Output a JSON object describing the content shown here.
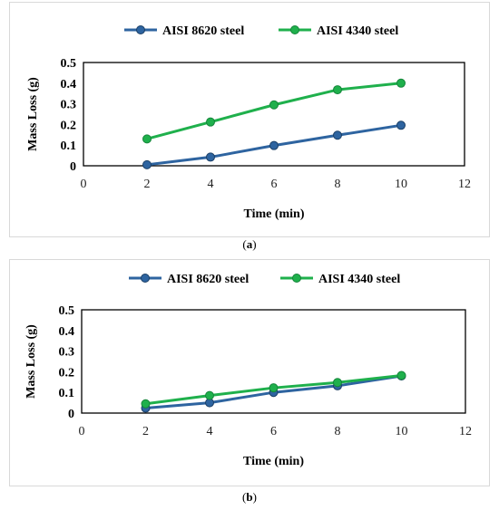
{
  "chart_data": [
    {
      "type": "line",
      "caption": "a",
      "xlabel": "Time (min)",
      "ylabel": "Mass Loss (g)",
      "xlim": [
        0,
        12
      ],
      "ylim": [
        0,
        0.5
      ],
      "x_ticks": [
        "0",
        "2",
        "4",
        "6",
        "8",
        "10",
        "12"
      ],
      "y_ticks": [
        "0",
        "0.1",
        "0.2",
        "0.3",
        "0.4",
        "0.5"
      ],
      "legend_position": "top",
      "grid": false,
      "series": [
        {
          "name": "AISI 8620 steel",
          "color": "#2e64a0",
          "x": [
            2,
            4,
            6,
            8,
            10
          ],
          "y": [
            0.005,
            0.042,
            0.098,
            0.148,
            0.196
          ]
        },
        {
          "name": "AISI 4340 steel",
          "color": "#1fb04c",
          "x": [
            2,
            4,
            6,
            8,
            10
          ],
          "y": [
            0.13,
            0.212,
            0.295,
            0.368,
            0.4
          ]
        }
      ]
    },
    {
      "type": "line",
      "caption": "b",
      "xlabel": "Time (min)",
      "ylabel": "Mass Loss (g)",
      "xlim": [
        0,
        12
      ],
      "ylim": [
        0,
        0.5
      ],
      "x_ticks": [
        "0",
        "2",
        "4",
        "6",
        "8",
        "10",
        "12"
      ],
      "y_ticks": [
        "0",
        "0.1",
        "0.2",
        "0.3",
        "0.4",
        "0.5"
      ],
      "legend_position": "top",
      "grid": false,
      "series": [
        {
          "name": "AISI 8620 steel",
          "color": "#2e64a0",
          "x": [
            2,
            4,
            6,
            8,
            10
          ],
          "y": [
            0.024,
            0.05,
            0.1,
            0.132,
            0.18
          ]
        },
        {
          "name": "AISI 4340 steel",
          "color": "#1fb04c",
          "x": [
            2,
            4,
            6,
            8,
            10
          ],
          "y": [
            0.045,
            0.085,
            0.122,
            0.148,
            0.182
          ]
        }
      ]
    }
  ]
}
